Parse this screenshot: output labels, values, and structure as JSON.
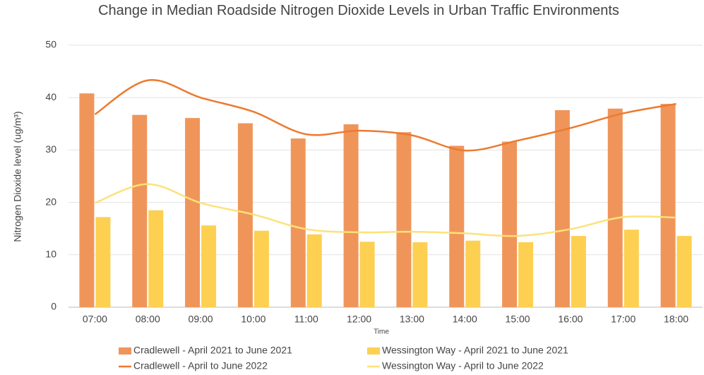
{
  "chart_data": {
    "type": "bar_line",
    "title": "Change in Median Roadside Nitrogen Dioxide Levels in Urban Traffic Environments",
    "x_label": "Time",
    "y_label": "Nitrogen Dioxide level (ug/m³)",
    "categories": [
      "07:00",
      "08:00",
      "09:00",
      "10:00",
      "11:00",
      "12:00",
      "13:00",
      "14:00",
      "15:00",
      "16:00",
      "17:00",
      "18:00"
    ],
    "series": [
      {
        "name": "Cradlewell - April 2021 to June 2021",
        "type": "bar",
        "color": "#f0955a",
        "values": [
          40.8,
          36.7,
          36.1,
          35.1,
          32.2,
          34.9,
          33.4,
          30.8,
          31.6,
          37.6,
          37.9,
          38.8
        ]
      },
      {
        "name": "Wessington Way - April 2021 to June 2021",
        "type": "bar",
        "color": "#fdd052",
        "values": [
          17.2,
          18.5,
          15.6,
          14.6,
          13.9,
          12.5,
          12.4,
          12.7,
          12.4,
          13.6,
          14.8,
          13.6
        ]
      },
      {
        "name": "Cradlewell - April to June 2022",
        "type": "line",
        "color": "#ec7a30",
        "values": [
          36.8,
          43.3,
          40.0,
          37.3,
          33.0,
          33.7,
          32.8,
          29.9,
          31.8,
          34.2,
          37.0,
          38.8
        ]
      },
      {
        "name": "Wessington Way - April to June 2022",
        "type": "line",
        "color": "#fce27a",
        "values": [
          19.9,
          23.5,
          19.9,
          17.7,
          14.9,
          14.3,
          14.4,
          14.1,
          13.6,
          14.9,
          17.2,
          17.1
        ]
      }
    ],
    "ylim": [
      0,
      50
    ],
    "yticks": [
      0,
      10,
      20,
      30,
      40,
      50
    ],
    "grid": true
  }
}
